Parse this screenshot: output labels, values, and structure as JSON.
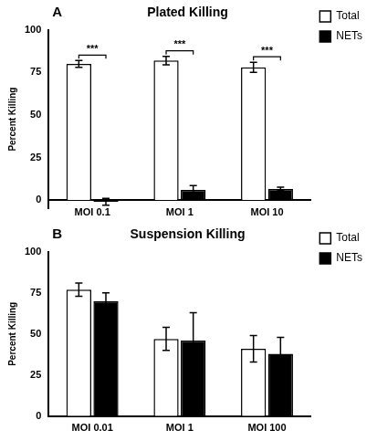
{
  "chart_data": [
    {
      "type": "bar",
      "panel": "A",
      "title": "Plated Killing",
      "y_label": "Percent Killing",
      "categories": [
        "MOI 0.1",
        "MOI 1",
        "MOI 10"
      ],
      "series": [
        {
          "name": "Total",
          "color": "#ffffff",
          "values": [
            80,
            82,
            78
          ],
          "errors": [
            2,
            2.5,
            3
          ]
        },
        {
          "name": "NETs",
          "color": "#000000",
          "values": [
            -1,
            6,
            6.5
          ],
          "errors": [
            2,
            2.5,
            1
          ]
        }
      ],
      "ylim": [
        -5,
        100
      ],
      "yticks": [
        0,
        25,
        50,
        75,
        100
      ],
      "grid": false,
      "legend": "right",
      "annotations": [
        {
          "category": "MOI 0.1",
          "text": "***"
        },
        {
          "category": "MOI 1",
          "text": "***"
        },
        {
          "category": "MOI 10",
          "text": "***"
        }
      ]
    },
    {
      "type": "bar",
      "panel": "B",
      "title": "Suspension Killing",
      "y_label": "Percent Killing",
      "categories": [
        "MOI 0.01",
        "MOI 1",
        "MOI 100"
      ],
      "series": [
        {
          "name": "Total",
          "color": "#ffffff",
          "values": [
            77,
            47,
            41
          ],
          "errors": [
            4,
            7,
            8
          ]
        },
        {
          "name": "NETs",
          "color": "#000000",
          "values": [
            70,
            46,
            38
          ],
          "errors": [
            5,
            17,
            10
          ]
        }
      ],
      "ylim": [
        0,
        100
      ],
      "yticks": [
        0,
        25,
        50,
        75,
        100
      ],
      "grid": false,
      "legend": "right"
    }
  ]
}
